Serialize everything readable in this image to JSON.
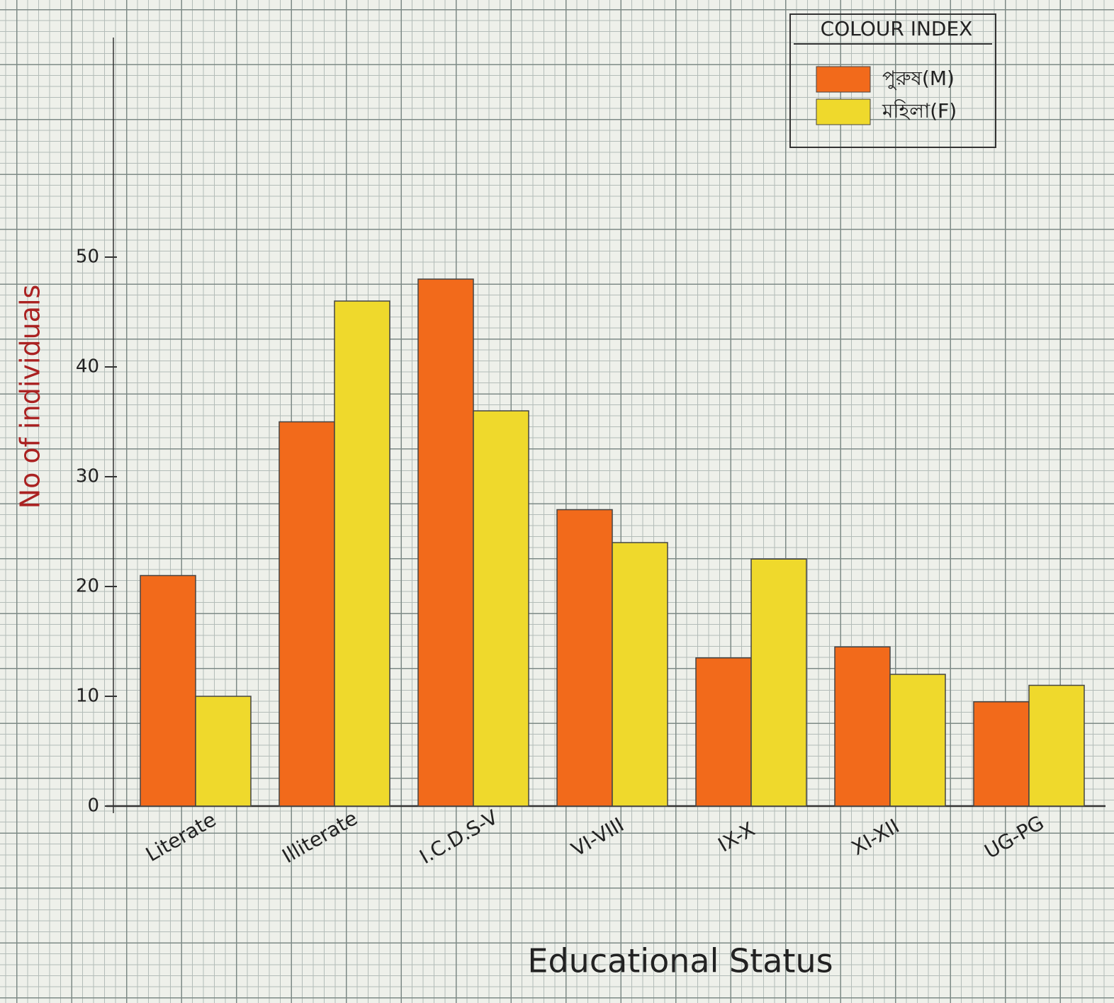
{
  "chart_data": {
    "type": "bar",
    "x_label": "Educational Status",
    "y_label": "No of individuals",
    "legend_title": "COLOUR INDEX",
    "legend_position": "upper right",
    "categories": [
      "Literate",
      "Illiterate",
      "I.C.D.S-V",
      "VI-VIII",
      "IX-X",
      "XI-XII",
      "UG-PG"
    ],
    "series": [
      {
        "name": "পুরুষ(M)",
        "color": "#f26a1b",
        "values": [
          21,
          35,
          48,
          27,
          13.5,
          14.5,
          9.5
        ]
      },
      {
        "name": "মহিলা(F)",
        "color": "#efd92c",
        "values": [
          10,
          46,
          36,
          24,
          22.5,
          12,
          11
        ]
      }
    ],
    "ylim": [
      0,
      70
    ],
    "yticks": [
      0,
      10,
      20,
      30,
      40,
      50
    ],
    "grid": true
  }
}
